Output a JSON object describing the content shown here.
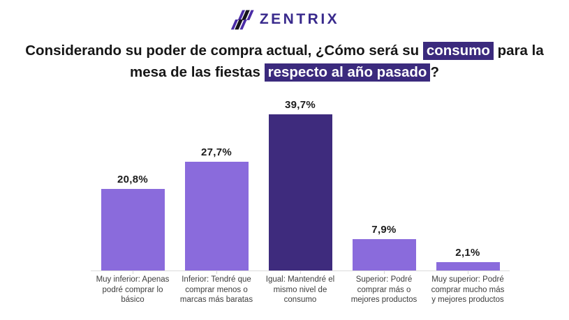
{
  "brand": {
    "name": "ZENTRIX",
    "icon_purple": "#4a2ba6",
    "icon_black": "#16141c",
    "wordmark_color": "#392a8c"
  },
  "title": {
    "highlight_bg": "#3b2a7d",
    "highlight_fg": "#ffffff",
    "line1": [
      {
        "t": "Considerando su poder de compra actual, ¿Cómo será su ",
        "hl": false
      },
      {
        "t": "consumo",
        "hl": true
      },
      {
        "t": " para la",
        "hl": false
      }
    ],
    "line2": [
      {
        "t": "mesa de las fiestas ",
        "hl": false
      },
      {
        "t": "respecto al año pasado",
        "hl": true
      },
      {
        "t": "?",
        "hl": false
      }
    ]
  },
  "chart_data": {
    "type": "bar",
    "title": "Cómo será su consumo para la mesa de las fiestas respecto al año pasado",
    "categories": [
      "Muy inferior: Apenas podré comprar lo básico",
      "Inferior: Tendré que comprar menos o marcas más baratas",
      "Igual: Mantendré el mismo nivel de consumo",
      "Superior: Podré comprar más o mejores productos",
      "Muy superior: Podré comprar mucho más y mejores productos"
    ],
    "category_lines": [
      [
        "Muy inferior: Apenas",
        "podré comprar lo",
        "básico"
      ],
      [
        "Inferior: Tendré que",
        "comprar menos o",
        "marcas más baratas"
      ],
      [
        "Igual: Mantendré el",
        "mismo nivel de",
        "consumo"
      ],
      [
        "Superior: Podré",
        "comprar más o",
        "mejores productos"
      ],
      [
        "Muy superior: Podré",
        "comprar mucho más",
        "y mejores productos"
      ]
    ],
    "values": [
      20.8,
      27.7,
      39.7,
      7.9,
      2.1
    ],
    "value_labels": [
      "20,8%",
      "27,7%",
      "39,7%",
      "7,9%",
      "2,1%"
    ],
    "bar_colors": [
      "#8a6bdc",
      "#8a6bdc",
      "#3e2b7d",
      "#8a6bdc",
      "#8a6bdc"
    ],
    "highlight_bar_index": 2,
    "xlabel": "",
    "ylabel": "",
    "ylim": [
      0,
      40
    ],
    "grid": "off",
    "legend": "none",
    "axis_line_color": "#dcdcdc"
  }
}
